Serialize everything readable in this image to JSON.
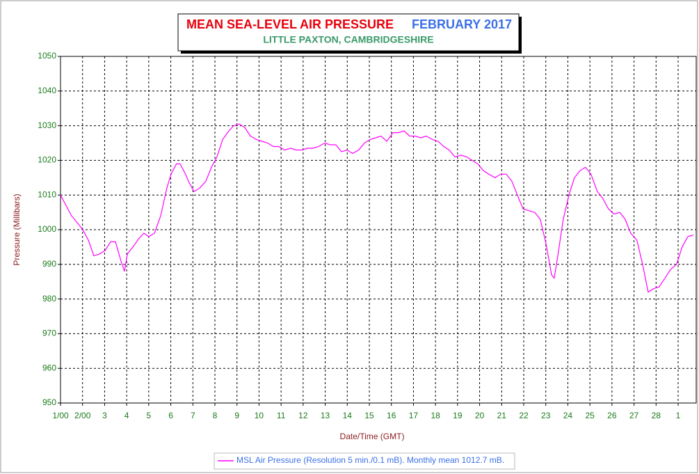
{
  "chart_data": {
    "type": "line",
    "title": "MEAN SEA-LEVEL AIR PRESSURE",
    "period": "FEBRUARY 2017",
    "subtitle": "LITTLE PAXTON, CAMBRIDGESHIRE",
    "x_label": "Date/Time (GMT)",
    "y_label": "Pressure (Millibars)",
    "x": [
      1.0,
      1.25,
      1.5,
      1.76,
      2.01,
      2.26,
      2.51,
      2.77,
      3.02,
      3.27,
      3.49,
      3.74,
      3.9,
      4.03,
      4.28,
      4.56,
      4.78,
      5.0,
      5.26,
      5.54,
      5.82,
      6.01,
      6.26,
      6.42,
      6.67,
      6.8,
      7.05,
      7.31,
      7.59,
      7.84,
      8.09,
      8.35,
      8.63,
      8.85,
      9.1,
      9.35,
      9.61,
      9.89,
      10.14,
      10.39,
      10.65,
      10.9,
      11.15,
      11.44,
      11.69,
      11.94,
      12.19,
      12.44,
      12.7,
      12.98,
      13.23,
      13.48,
      13.74,
      13.99,
      14.24,
      14.52,
      14.78,
      15.03,
      15.28,
      15.53,
      15.79,
      16.07,
      16.32,
      16.57,
      16.83,
      17.08,
      17.33,
      17.58,
      17.87,
      18.12,
      18.37,
      18.62,
      18.88,
      19.16,
      19.41,
      19.66,
      19.92,
      20.17,
      20.42,
      20.7,
      20.96,
      21.21,
      21.46,
      21.71,
      21.97,
      22.22,
      22.5,
      22.75,
      23.01,
      23.26,
      23.38,
      23.51,
      23.79,
      24.05,
      24.3,
      24.55,
      24.8,
      25.05,
      25.34,
      25.59,
      25.84,
      26.09,
      26.35,
      26.6,
      26.85,
      27.13,
      27.39,
      27.64,
      27.89,
      28.14,
      28.4,
      28.65,
      28.93,
      29.18,
      29.44,
      29.69
    ],
    "series": [
      {
        "name": "MSL Air Pressure (Resolution 5 min./0.1 mB). Monthly mean 1012.7 mB.",
        "color": "#ff00ff",
        "values": [
          1010,
          1007,
          1004,
          1002,
          1000,
          997,
          992.5,
          993,
          994,
          996.5,
          996.5,
          991,
          988,
          993,
          995,
          997.5,
          999,
          998,
          999,
          1004,
          1012,
          1016,
          1019,
          1019,
          1016,
          1014,
          1011,
          1012,
          1014,
          1018,
          1021,
          1026,
          1028.5,
          1030,
          1030.5,
          1029.5,
          1027,
          1026,
          1025.5,
          1025,
          1024,
          1024,
          1023,
          1023.5,
          1023,
          1023,
          1023.5,
          1023.5,
          1024,
          1025,
          1024.5,
          1024.5,
          1022.5,
          1023,
          1022,
          1023,
          1025,
          1026,
          1026.5,
          1027,
          1025.5,
          1028,
          1028,
          1028.5,
          1027,
          1027,
          1026.5,
          1027,
          1026,
          1025.5,
          1024,
          1023,
          1021,
          1021.5,
          1021,
          1020,
          1019,
          1017,
          1016,
          1015,
          1016,
          1016,
          1014,
          1010,
          1006,
          1005.5,
          1005,
          1003,
          996,
          987,
          986,
          991,
          1003,
          1010,
          1015,
          1017,
          1018,
          1016,
          1011,
          1009,
          1006,
          1004.5,
          1005,
          1003,
          999,
          997,
          990,
          982,
          983,
          983.5,
          986,
          988.5,
          990,
          995,
          998,
          998.5
        ]
      }
    ],
    "xlim": [
      1,
      29.82
    ],
    "xticks": [
      {
        "value": 1,
        "label": "1/00"
      },
      {
        "value": 2,
        "label": "2/00"
      },
      3,
      4,
      5,
      6,
      7,
      8,
      9,
      10,
      11,
      12,
      13,
      14,
      15,
      16,
      17,
      18,
      19,
      20,
      21,
      22,
      23,
      24,
      25,
      26,
      27,
      28,
      {
        "value": 29,
        "label": "1"
      }
    ],
    "ylim": [
      950,
      1050
    ],
    "yticks": [
      950,
      960,
      970,
      980,
      990,
      1000,
      1010,
      1020,
      1030,
      1040,
      1050
    ],
    "grid": true
  }
}
